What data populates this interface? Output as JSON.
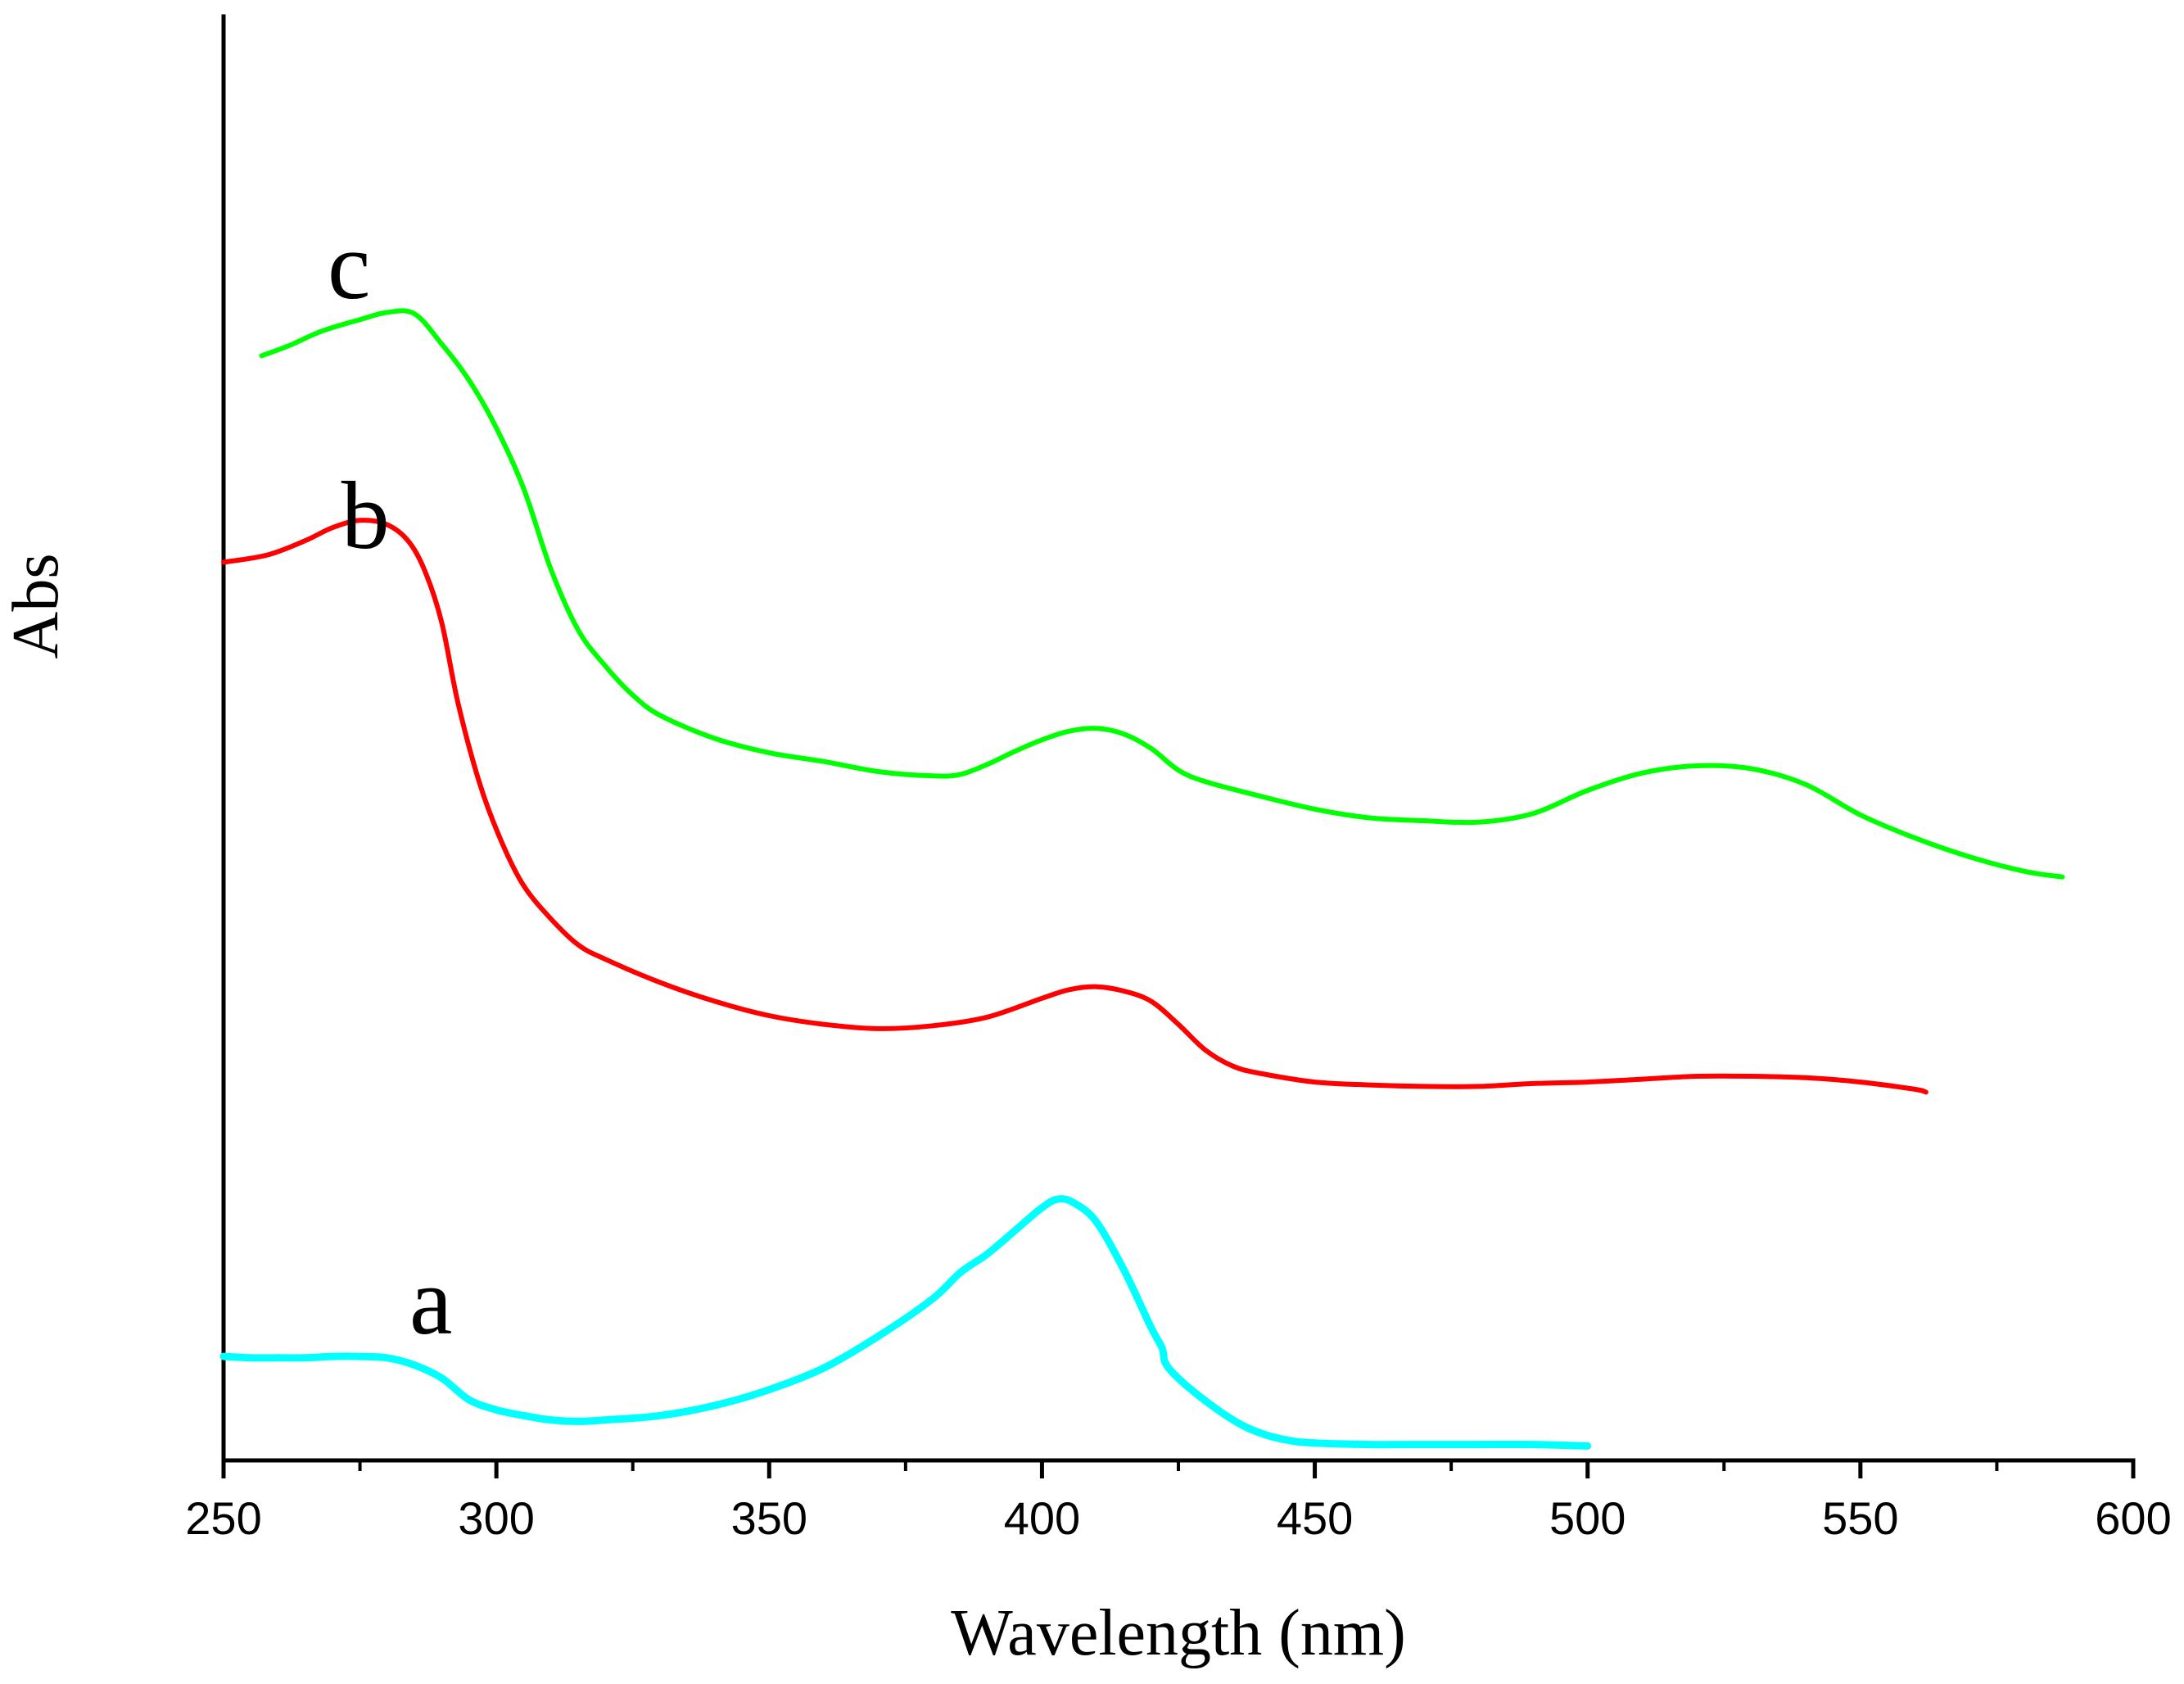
{
  "chart_data": {
    "type": "line",
    "title": "",
    "xlabel": "Wavelength (nm)",
    "ylabel": "Abs",
    "xlim": [
      250,
      600
    ],
    "ylim": [
      0,
      1.0
    ],
    "x_major_ticks": [
      250,
      300,
      350,
      400,
      450,
      500,
      550,
      600
    ],
    "x_minor_ticks": [
      275,
      325,
      375,
      425,
      475,
      525,
      575
    ],
    "grid": false,
    "legend": "none",
    "series": [
      {
        "name": "a",
        "color": "#00ffff",
        "points": [
          [
            250,
            0.072
          ],
          [
            255,
            0.071
          ],
          [
            260,
            0.071
          ],
          [
            265,
            0.071
          ],
          [
            270,
            0.072
          ],
          [
            275,
            0.072
          ],
          [
            280,
            0.071
          ],
          [
            285,
            0.066
          ],
          [
            290,
            0.057
          ],
          [
            295,
            0.042
          ],
          [
            300,
            0.035
          ],
          [
            305,
            0.031
          ],
          [
            310,
            0.028
          ],
          [
            315,
            0.027
          ],
          [
            320,
            0.028
          ],
          [
            330,
            0.031
          ],
          [
            340,
            0.038
          ],
          [
            350,
            0.049
          ],
          [
            360,
            0.064
          ],
          [
            370,
            0.086
          ],
          [
            380,
            0.112
          ],
          [
            385,
            0.13
          ],
          [
            390,
            0.143
          ],
          [
            395,
            0.159
          ],
          [
            400,
            0.175
          ],
          [
            403,
            0.181
          ],
          [
            406,
            0.178
          ],
          [
            410,
            0.165
          ],
          [
            415,
            0.132
          ],
          [
            420,
            0.092
          ],
          [
            422,
            0.078
          ],
          [
            423,
            0.065
          ],
          [
            428,
            0.047
          ],
          [
            435,
            0.028
          ],
          [
            440,
            0.019
          ],
          [
            445,
            0.014
          ],
          [
            450,
            0.012
          ],
          [
            460,
            0.011
          ],
          [
            470,
            0.011
          ],
          [
            480,
            0.011
          ],
          [
            490,
            0.011
          ],
          [
            500,
            0.01
          ]
        ]
      },
      {
        "name": "b",
        "color": "#ff0000",
        "points": [
          [
            250,
            0.622
          ],
          [
            258,
            0.627
          ],
          [
            265,
            0.637
          ],
          [
            270,
            0.646
          ],
          [
            275,
            0.651
          ],
          [
            280,
            0.648
          ],
          [
            284,
            0.636
          ],
          [
            287,
            0.615
          ],
          [
            290,
            0.58
          ],
          [
            293,
            0.524
          ],
          [
            297,
            0.468
          ],
          [
            301,
            0.428
          ],
          [
            305,
            0.398
          ],
          [
            310,
            0.375
          ],
          [
            315,
            0.357
          ],
          [
            320,
            0.347
          ],
          [
            330,
            0.331
          ],
          [
            340,
            0.318
          ],
          [
            350,
            0.308
          ],
          [
            360,
            0.302
          ],
          [
            370,
            0.299
          ],
          [
            380,
            0.301
          ],
          [
            390,
            0.307
          ],
          [
            400,
            0.32
          ],
          [
            405,
            0.326
          ],
          [
            410,
            0.328
          ],
          [
            415,
            0.325
          ],
          [
            420,
            0.318
          ],
          [
            425,
            0.302
          ],
          [
            430,
            0.284
          ],
          [
            435,
            0.273
          ],
          [
            440,
            0.268
          ],
          [
            450,
            0.262
          ],
          [
            460,
            0.26
          ],
          [
            470,
            0.259
          ],
          [
            480,
            0.259
          ],
          [
            490,
            0.261
          ],
          [
            500,
            0.262
          ],
          [
            510,
            0.264
          ],
          [
            520,
            0.266
          ],
          [
            530,
            0.266
          ],
          [
            540,
            0.265
          ],
          [
            550,
            0.262
          ],
          [
            560,
            0.257
          ],
          [
            562,
            0.255
          ]
        ]
      },
      {
        "name": "c",
        "color": "#00ff00",
        "points": [
          [
            257,
            0.765
          ],
          [
            262,
            0.772
          ],
          [
            268,
            0.782
          ],
          [
            275,
            0.79
          ],
          [
            280,
            0.795
          ],
          [
            285,
            0.794
          ],
          [
            290,
            0.773
          ],
          [
            295,
            0.748
          ],
          [
            300,
            0.715
          ],
          [
            305,
            0.673
          ],
          [
            310,
            0.617
          ],
          [
            315,
            0.575
          ],
          [
            320,
            0.55
          ],
          [
            325,
            0.53
          ],
          [
            330,
            0.516
          ],
          [
            340,
            0.5
          ],
          [
            350,
            0.49
          ],
          [
            360,
            0.484
          ],
          [
            370,
            0.477
          ],
          [
            380,
            0.474
          ],
          [
            385,
            0.475
          ],
          [
            390,
            0.482
          ],
          [
            395,
            0.491
          ],
          [
            400,
            0.499
          ],
          [
            405,
            0.505
          ],
          [
            410,
            0.507
          ],
          [
            415,
            0.503
          ],
          [
            420,
            0.493
          ],
          [
            425,
            0.478
          ],
          [
            430,
            0.47
          ],
          [
            440,
            0.46
          ],
          [
            450,
            0.451
          ],
          [
            460,
            0.445
          ],
          [
            470,
            0.443
          ],
          [
            480,
            0.442
          ],
          [
            490,
            0.448
          ],
          [
            500,
            0.464
          ],
          [
            510,
            0.476
          ],
          [
            520,
            0.481
          ],
          [
            530,
            0.479
          ],
          [
            540,
            0.468
          ],
          [
            550,
            0.447
          ],
          [
            560,
            0.431
          ],
          [
            570,
            0.418
          ],
          [
            580,
            0.408
          ],
          [
            587,
            0.404
          ]
        ]
      }
    ],
    "annotations": [
      {
        "text": "a",
        "x": 288,
        "y": 0.088,
        "series": "a"
      },
      {
        "text": "b",
        "x": 276,
        "y": 0.632,
        "series": "b"
      },
      {
        "text": "c",
        "x": 273,
        "y": 0.805,
        "series": "c"
      }
    ]
  }
}
